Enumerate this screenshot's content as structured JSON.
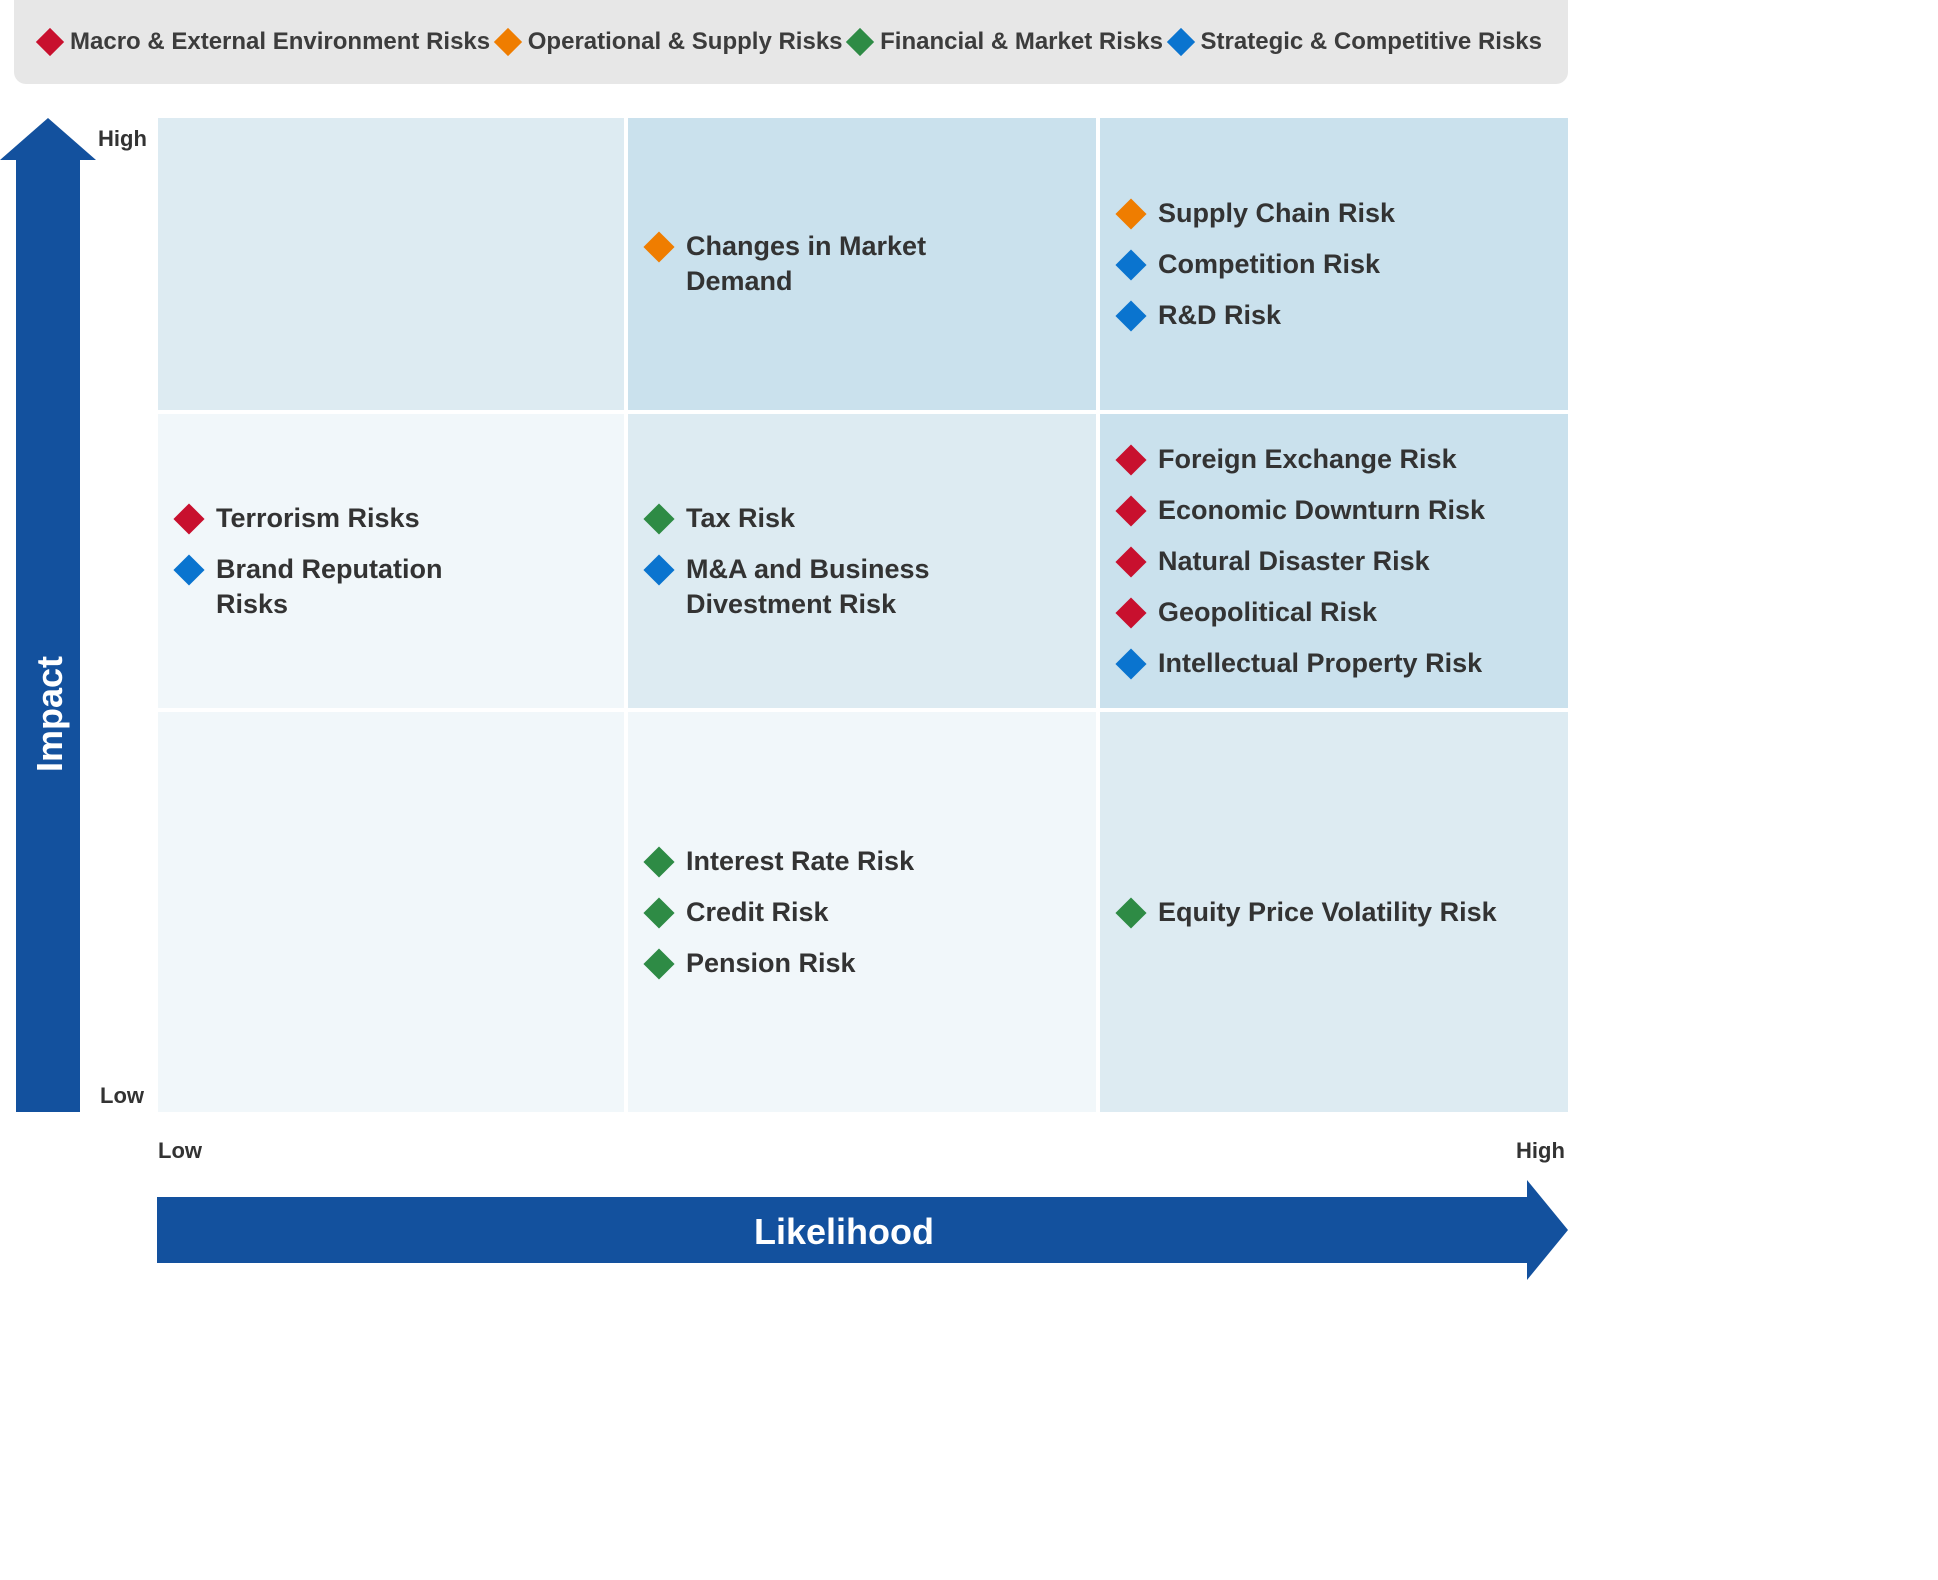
{
  "legend": [
    {
      "label": "Macro & External Environment Risks",
      "color": "#c8102e",
      "key": "macro"
    },
    {
      "label": "Operational & Supply Risks",
      "color": "#ef7d00",
      "key": "operational"
    },
    {
      "label": "Financial & Market Risks",
      "color": "#2e8b45",
      "key": "financial"
    },
    {
      "label": "Strategic & Competitive Risks",
      "color": "#0a74cf",
      "key": "strategic"
    }
  ],
  "axes": {
    "y": {
      "title": "Impact",
      "high": "High",
      "low": "Low"
    },
    "x": {
      "title": "Likelihood",
      "low": "Low",
      "high": "High"
    },
    "arrow_color": "#13519e"
  },
  "cells": [
    {
      "impact": "high",
      "likelihood": "low",
      "bg": "#ddebf2",
      "items": []
    },
    {
      "impact": "high",
      "likelihood": "medium",
      "bg": "#cae1ed",
      "items": [
        {
          "label": "Changes in Market Demand",
          "category": "operational"
        }
      ]
    },
    {
      "impact": "high",
      "likelihood": "high",
      "bg": "#cae1ed",
      "items": [
        {
          "label": "Supply Chain Risk",
          "category": "operational"
        },
        {
          "label": "Competition Risk",
          "category": "strategic"
        },
        {
          "label": "R&D Risk",
          "category": "strategic"
        }
      ]
    },
    {
      "impact": "medium",
      "likelihood": "low",
      "bg": "#f1f7fa",
      "items": [
        {
          "label": "Terrorism Risks",
          "category": "macro"
        },
        {
          "label": "Brand Reputation Risks",
          "category": "strategic"
        }
      ]
    },
    {
      "impact": "medium",
      "likelihood": "medium",
      "bg": "#ddebf2",
      "items": [
        {
          "label": "Tax Risk",
          "category": "financial"
        },
        {
          "label": "M&A and Business Divestment Risk",
          "category": "strategic"
        }
      ]
    },
    {
      "impact": "medium",
      "likelihood": "high",
      "bg": "#cae1ed",
      "items": [
        {
          "label": "Foreign Exchange Risk",
          "category": "macro"
        },
        {
          "label": "Economic Downturn Risk",
          "category": "macro"
        },
        {
          "label": "Natural Disaster Risk",
          "category": "macro"
        },
        {
          "label": "Geopolitical Risk",
          "category": "macro"
        },
        {
          "label": "Intellectual Property Risk",
          "category": "strategic"
        }
      ]
    },
    {
      "impact": "low",
      "likelihood": "low",
      "bg": "#f1f7fa",
      "items": []
    },
    {
      "impact": "low",
      "likelihood": "medium",
      "bg": "#f1f7fa",
      "items": [
        {
          "label": "Interest Rate Risk",
          "category": "financial"
        },
        {
          "label": "Credit Risk",
          "category": "financial"
        },
        {
          "label": "Pension Risk",
          "category": "financial"
        }
      ]
    },
    {
      "impact": "low",
      "likelihood": "high",
      "bg": "#ddebf2",
      "items": [
        {
          "label": "Equity Price Volatility Risk",
          "category": "financial"
        }
      ]
    }
  ]
}
